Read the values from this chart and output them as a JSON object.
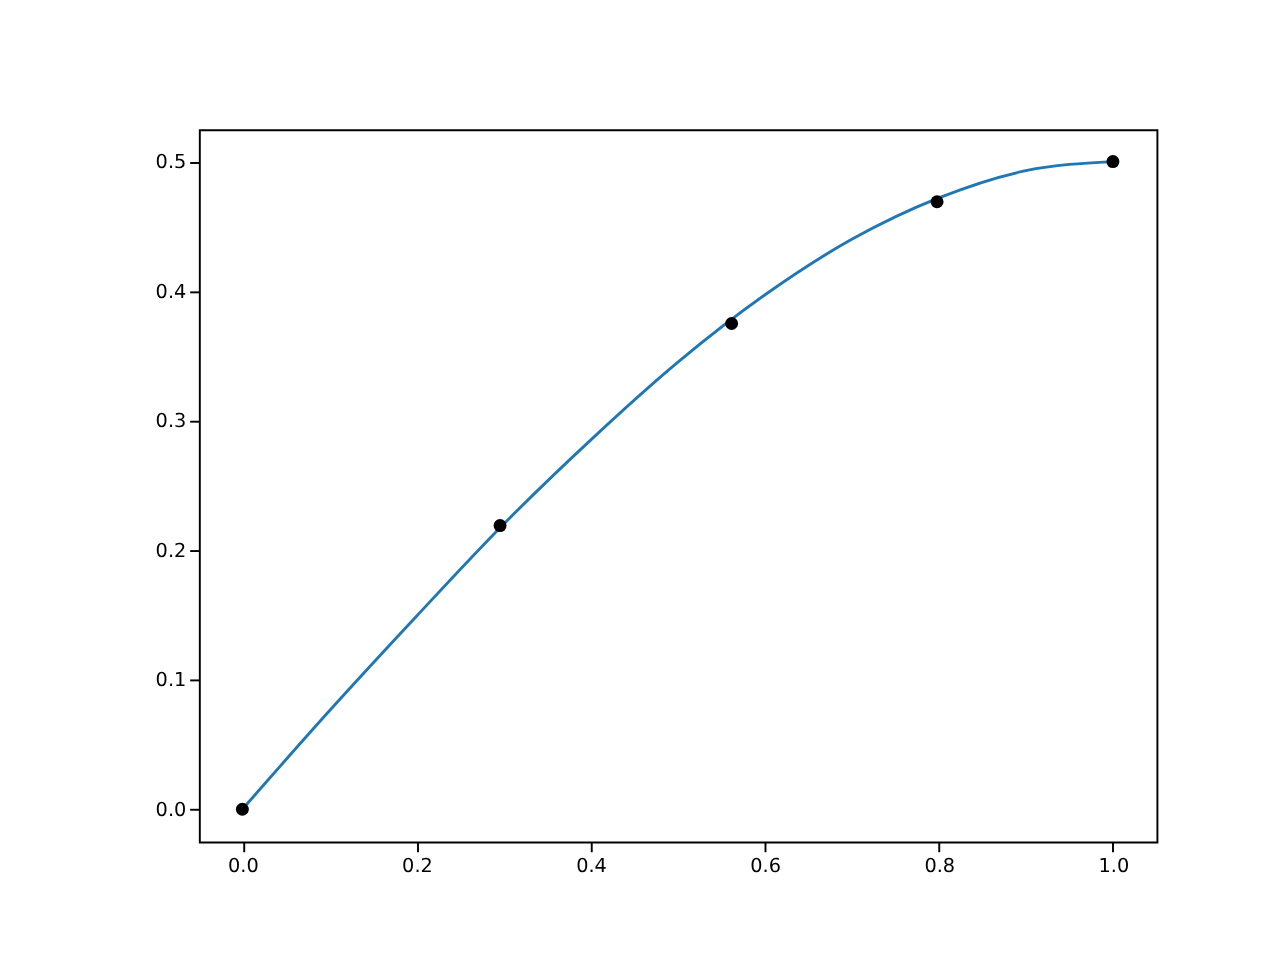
{
  "chart_data": {
    "type": "line",
    "series": [
      {
        "color": "#1f77b4",
        "marker": "none",
        "x": [
          0,
          0.1,
          0.2,
          0.3,
          0.4,
          0.5,
          0.6,
          0.7,
          0.8,
          0.9,
          1.0
        ],
        "values": [
          0,
          0.076,
          0.149,
          0.22,
          0.285,
          0.345,
          0.397,
          0.44,
          0.472,
          0.493,
          0.5
        ]
      },
      {
        "type": "scatter",
        "color": "#000000",
        "marker": "circle",
        "x": [
          0,
          0.296,
          0.562,
          0.798,
          1.0
        ],
        "values": [
          0,
          0.219,
          0.375,
          0.469,
          0.5
        ]
      }
    ],
    "xlim": [
      -0.05,
      1.05
    ],
    "ylim": [
      -0.025,
      0.525
    ],
    "xticks": [
      {
        "value": 0,
        "label": "0.0"
      },
      {
        "value": 0.2,
        "label": "0.2"
      },
      {
        "value": 0.4,
        "label": "0.4"
      },
      {
        "value": 0.6,
        "label": "0.6"
      },
      {
        "value": 0.8,
        "label": "0.8"
      },
      {
        "value": 1.0,
        "label": "1.0"
      }
    ],
    "yticks": [
      {
        "value": 0,
        "label": "0.0"
      },
      {
        "value": 0.1,
        "label": "0.1"
      },
      {
        "value": 0.2,
        "label": "0.2"
      },
      {
        "value": 0.3,
        "label": "0.3"
      },
      {
        "value": 0.4,
        "label": "0.4"
      },
      {
        "value": 0.5,
        "label": "0.5"
      }
    ],
    "grid": false
  }
}
